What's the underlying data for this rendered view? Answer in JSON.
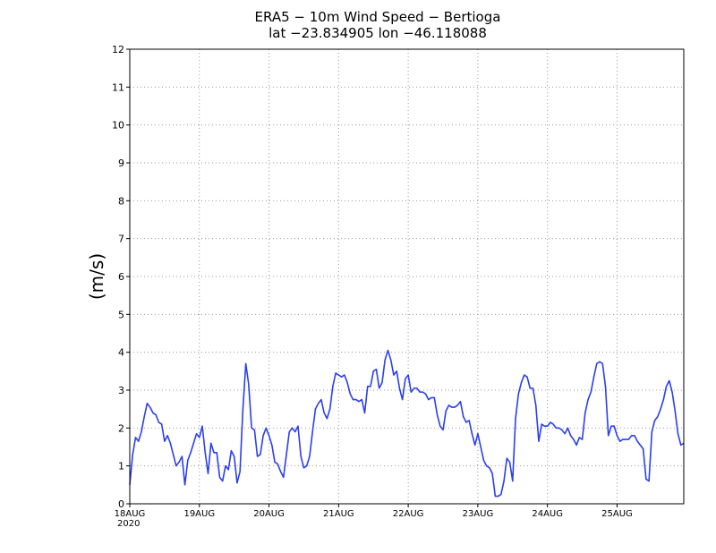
{
  "chart_data": {
    "type": "line",
    "title": "ERA5 − 10m Wind Speed − Bertioga",
    "subtitle": "lat −23.834905 lon −46.118088",
    "xlabel": "",
    "ylabel": "(m/s)",
    "ylim": [
      0,
      12
    ],
    "xlim": [
      0,
      191
    ],
    "grid": true,
    "yticks": [
      "0",
      "1",
      "2",
      "3",
      "4",
      "5",
      "6",
      "7",
      "8",
      "9",
      "10",
      "11",
      "12"
    ],
    "xticks": [
      {
        "hour": 0,
        "label": "18AUG",
        "sublabel": "2020"
      },
      {
        "hour": 24,
        "label": "19AUG"
      },
      {
        "hour": 48,
        "label": "20AUG"
      },
      {
        "hour": 72,
        "label": "21AUG"
      },
      {
        "hour": 96,
        "label": "22AUG"
      },
      {
        "hour": 120,
        "label": "23AUG"
      },
      {
        "hour": 144,
        "label": "24AUG"
      },
      {
        "hour": 168,
        "label": "25AUG"
      }
    ],
    "series": [
      {
        "name": "10m Wind Speed",
        "color": "#2b3ff0",
        "points": [
          [
            0,
            0.5
          ],
          [
            1,
            1.3
          ],
          [
            2,
            1.75
          ],
          [
            3,
            1.65
          ],
          [
            4,
            1.9
          ],
          [
            5,
            2.3
          ],
          [
            6,
            2.65
          ],
          [
            7,
            2.55
          ],
          [
            8,
            2.4
          ],
          [
            9,
            2.35
          ],
          [
            10,
            2.15
          ],
          [
            11,
            2.1
          ],
          [
            12,
            1.65
          ],
          [
            13,
            1.8
          ],
          [
            14,
            1.6
          ],
          [
            15,
            1.3
          ],
          [
            16,
            1.0
          ],
          [
            17,
            1.1
          ],
          [
            18,
            1.25
          ],
          [
            19,
            0.5
          ],
          [
            20,
            1.15
          ],
          [
            21,
            1.35
          ],
          [
            22,
            1.6
          ],
          [
            23,
            1.85
          ],
          [
            24,
            1.75
          ],
          [
            25,
            2.05
          ],
          [
            26,
            1.35
          ],
          [
            27,
            0.8
          ],
          [
            28,
            1.6
          ],
          [
            29,
            1.35
          ],
          [
            30,
            1.35
          ],
          [
            31,
            0.7
          ],
          [
            32,
            0.6
          ],
          [
            33,
            1.0
          ],
          [
            34,
            0.9
          ],
          [
            35,
            1.4
          ],
          [
            36,
            1.25
          ],
          [
            37,
            0.55
          ],
          [
            38,
            0.85
          ],
          [
            39,
            2.5
          ],
          [
            40,
            3.7
          ],
          [
            41,
            3.15
          ],
          [
            42,
            2.0
          ],
          [
            43,
            1.95
          ],
          [
            44,
            1.25
          ],
          [
            45,
            1.3
          ],
          [
            46,
            1.8
          ],
          [
            47,
            2.0
          ],
          [
            48,
            1.8
          ],
          [
            49,
            1.55
          ],
          [
            50,
            1.1
          ],
          [
            51,
            1.05
          ],
          [
            52,
            0.85
          ],
          [
            53,
            0.7
          ],
          [
            54,
            1.3
          ],
          [
            55,
            1.9
          ],
          [
            56,
            2.0
          ],
          [
            57,
            1.9
          ],
          [
            58,
            2.05
          ],
          [
            59,
            1.25
          ],
          [
            60,
            0.95
          ],
          [
            61,
            1.0
          ],
          [
            62,
            1.25
          ],
          [
            63,
            1.9
          ],
          [
            64,
            2.5
          ],
          [
            65,
            2.65
          ],
          [
            66,
            2.75
          ],
          [
            67,
            2.4
          ],
          [
            68,
            2.25
          ],
          [
            69,
            2.5
          ],
          [
            70,
            3.1
          ],
          [
            71,
            3.45
          ],
          [
            72,
            3.4
          ],
          [
            73,
            3.35
          ],
          [
            74,
            3.4
          ],
          [
            75,
            3.2
          ],
          [
            76,
            2.9
          ],
          [
            77,
            2.75
          ],
          [
            78,
            2.75
          ],
          [
            79,
            2.7
          ],
          [
            80,
            2.75
          ],
          [
            81,
            2.4
          ],
          [
            82,
            3.1
          ],
          [
            83,
            3.1
          ],
          [
            84,
            3.5
          ],
          [
            85,
            3.55
          ],
          [
            86,
            3.05
          ],
          [
            87,
            3.2
          ],
          [
            88,
            3.8
          ],
          [
            89,
            4.05
          ],
          [
            90,
            3.8
          ],
          [
            91,
            3.4
          ],
          [
            92,
            3.5
          ],
          [
            93,
            3.05
          ],
          [
            94,
            2.75
          ],
          [
            95,
            3.3
          ],
          [
            96,
            3.4
          ],
          [
            97,
            2.95
          ],
          [
            98,
            3.05
          ],
          [
            99,
            3.05
          ],
          [
            100,
            2.95
          ],
          [
            101,
            2.95
          ],
          [
            102,
            2.9
          ],
          [
            103,
            2.75
          ],
          [
            104,
            2.8
          ],
          [
            105,
            2.8
          ],
          [
            106,
            2.35
          ],
          [
            107,
            2.05
          ],
          [
            108,
            1.95
          ],
          [
            109,
            2.45
          ],
          [
            110,
            2.6
          ],
          [
            111,
            2.55
          ],
          [
            112,
            2.55
          ],
          [
            113,
            2.6
          ],
          [
            114,
            2.7
          ],
          [
            115,
            2.3
          ],
          [
            116,
            2.15
          ],
          [
            117,
            2.2
          ],
          [
            118,
            1.85
          ],
          [
            119,
            1.55
          ],
          [
            120,
            1.85
          ],
          [
            121,
            1.5
          ],
          [
            122,
            1.15
          ],
          [
            123,
            1.0
          ],
          [
            124,
            0.95
          ],
          [
            125,
            0.8
          ],
          [
            126,
            0.2
          ],
          [
            127,
            0.2
          ],
          [
            128,
            0.25
          ],
          [
            129,
            0.6
          ],
          [
            130,
            1.2
          ],
          [
            131,
            1.1
          ],
          [
            132,
            0.6
          ],
          [
            133,
            2.25
          ],
          [
            134,
            2.9
          ],
          [
            135,
            3.2
          ],
          [
            136,
            3.4
          ],
          [
            137,
            3.35
          ],
          [
            138,
            3.05
          ],
          [
            139,
            3.05
          ],
          [
            140,
            2.6
          ],
          [
            141,
            1.65
          ],
          [
            142,
            2.1
          ],
          [
            143,
            2.05
          ],
          [
            144,
            2.05
          ],
          [
            145,
            2.15
          ],
          [
            146,
            2.1
          ],
          [
            147,
            2.0
          ],
          [
            148,
            2.0
          ],
          [
            149,
            1.95
          ],
          [
            150,
            1.85
          ],
          [
            151,
            2.0
          ],
          [
            152,
            1.8
          ],
          [
            153,
            1.7
          ],
          [
            154,
            1.55
          ],
          [
            155,
            1.75
          ],
          [
            156,
            1.7
          ],
          [
            157,
            2.4
          ],
          [
            158,
            2.75
          ],
          [
            159,
            2.95
          ],
          [
            160,
            3.35
          ],
          [
            161,
            3.7
          ],
          [
            162,
            3.75
          ],
          [
            163,
            3.7
          ],
          [
            164,
            3.1
          ],
          [
            165,
            1.8
          ],
          [
            166,
            2.05
          ],
          [
            167,
            2.05
          ],
          [
            168,
            1.8
          ],
          [
            169,
            1.65
          ],
          [
            170,
            1.7
          ],
          [
            171,
            1.7
          ],
          [
            172,
            1.7
          ],
          [
            173,
            1.8
          ],
          [
            174,
            1.8
          ],
          [
            175,
            1.65
          ],
          [
            176,
            1.55
          ],
          [
            177,
            1.45
          ],
          [
            178,
            0.65
          ],
          [
            179,
            0.6
          ],
          [
            180,
            1.9
          ],
          [
            181,
            2.2
          ],
          [
            182,
            2.3
          ],
          [
            183,
            2.5
          ],
          [
            184,
            2.75
          ],
          [
            185,
            3.1
          ],
          [
            186,
            3.25
          ],
          [
            187,
            2.95
          ],
          [
            188,
            2.45
          ],
          [
            189,
            1.85
          ],
          [
            190,
            1.55
          ],
          [
            191,
            1.6
          ]
        ]
      }
    ]
  }
}
